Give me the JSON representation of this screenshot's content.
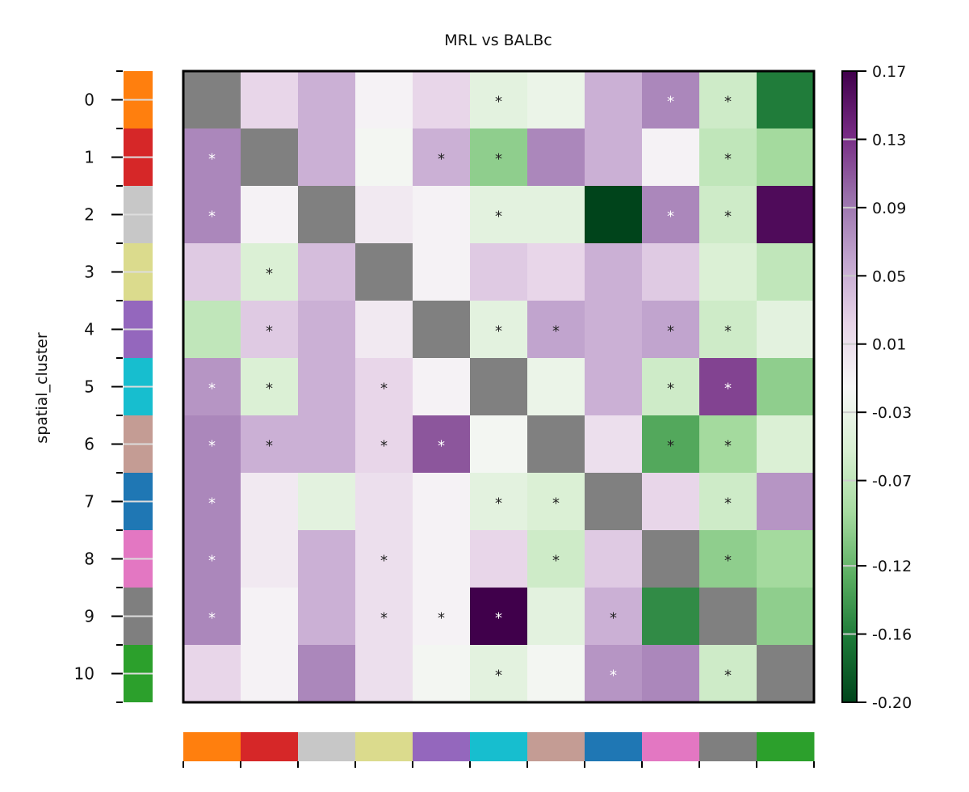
{
  "chart_data": {
    "type": "heatmap",
    "title": "MRL vs BALBc",
    "ylabel": "spatial_cluster",
    "row_labels": [
      "0",
      "1",
      "2",
      "3",
      "4",
      "5",
      "6",
      "7",
      "8",
      "9",
      "10"
    ],
    "group_colors": [
      "#ff7f0e",
      "#d62728",
      "#c7c7c7",
      "#dbdb8d",
      "#9467bd",
      "#17becf",
      "#c49c94",
      "#1f77b4",
      "#e377c2",
      "#7f7f7f",
      "#2ca02c"
    ],
    "diagonal_color": "#808080",
    "colorbar": {
      "min": -0.2,
      "max": 0.17,
      "ticks": [
        0.17,
        0.13,
        0.09,
        0.05,
        0.01,
        -0.03,
        -0.07,
        -0.12,
        -0.16,
        -0.2
      ],
      "tick_labels": [
        "0.17",
        "0.13",
        "0.09",
        "0.05",
        "0.01",
        "-0.03",
        "-0.07",
        "-0.12",
        "-0.16",
        "-0.20"
      ],
      "colormap": "PRGn"
    },
    "values": [
      [
        null,
        0.02,
        0.05,
        -0.01,
        0.02,
        -0.04,
        -0.03,
        0.05,
        0.08,
        -0.06,
        -0.16
      ],
      [
        0.08,
        null,
        0.05,
        -0.02,
        0.05,
        -0.1,
        0.08,
        0.05,
        -0.01,
        -0.07,
        -0.09
      ],
      [
        0.08,
        -0.01,
        null,
        0.0,
        -0.01,
        -0.04,
        -0.04,
        -0.2,
        0.08,
        -0.06,
        0.16
      ],
      [
        0.03,
        -0.05,
        0.04,
        null,
        -0.01,
        0.03,
        0.02,
        0.05,
        0.03,
        -0.05,
        -0.07
      ],
      [
        -0.07,
        0.03,
        0.05,
        0.0,
        null,
        -0.04,
        0.06,
        0.05,
        0.06,
        -0.06,
        -0.04
      ],
      [
        0.07,
        -0.05,
        0.05,
        0.02,
        -0.01,
        null,
        -0.03,
        0.05,
        -0.06,
        0.12,
        -0.1
      ],
      [
        0.08,
        0.05,
        0.05,
        0.02,
        0.11,
        -0.02,
        null,
        0.01,
        -0.13,
        -0.09,
        -0.05
      ],
      [
        0.08,
        0.0,
        -0.04,
        0.01,
        -0.01,
        -0.04,
        -0.05,
        null,
        0.02,
        -0.06,
        0.07
      ],
      [
        0.08,
        0.0,
        0.05,
        0.01,
        -0.01,
        0.02,
        -0.06,
        0.03,
        null,
        -0.1,
        -0.09
      ],
      [
        0.08,
        -0.01,
        0.05,
        0.01,
        -0.01,
        0.17,
        -0.04,
        0.05,
        -0.15,
        null,
        -0.1
      ],
      [
        0.02,
        -0.01,
        0.08,
        0.01,
        -0.02,
        -0.04,
        -0.02,
        0.07,
        0.08,
        -0.06,
        null
      ]
    ],
    "significance_marker": "*",
    "significant": [
      [
        0,
        0,
        0,
        0,
        0,
        1,
        0,
        0,
        1,
        1,
        0
      ],
      [
        1,
        0,
        0,
        0,
        1,
        1,
        0,
        0,
        0,
        1,
        0
      ],
      [
        1,
        0,
        0,
        0,
        0,
        1,
        0,
        0,
        1,
        1,
        0
      ],
      [
        0,
        1,
        0,
        0,
        0,
        0,
        0,
        0,
        0,
        0,
        0
      ],
      [
        0,
        1,
        0,
        0,
        0,
        1,
        1,
        0,
        1,
        1,
        0
      ],
      [
        1,
        1,
        0,
        1,
        0,
        0,
        0,
        0,
        1,
        1,
        0
      ],
      [
        1,
        1,
        0,
        1,
        1,
        0,
        0,
        0,
        1,
        1,
        0
      ],
      [
        1,
        0,
        0,
        0,
        0,
        1,
        1,
        0,
        0,
        1,
        0
      ],
      [
        1,
        0,
        0,
        1,
        0,
        0,
        1,
        0,
        0,
        1,
        0
      ],
      [
        1,
        0,
        0,
        1,
        1,
        1,
        0,
        1,
        0,
        0,
        0
      ],
      [
        0,
        0,
        0,
        0,
        0,
        1,
        0,
        1,
        0,
        1,
        0
      ]
    ]
  }
}
